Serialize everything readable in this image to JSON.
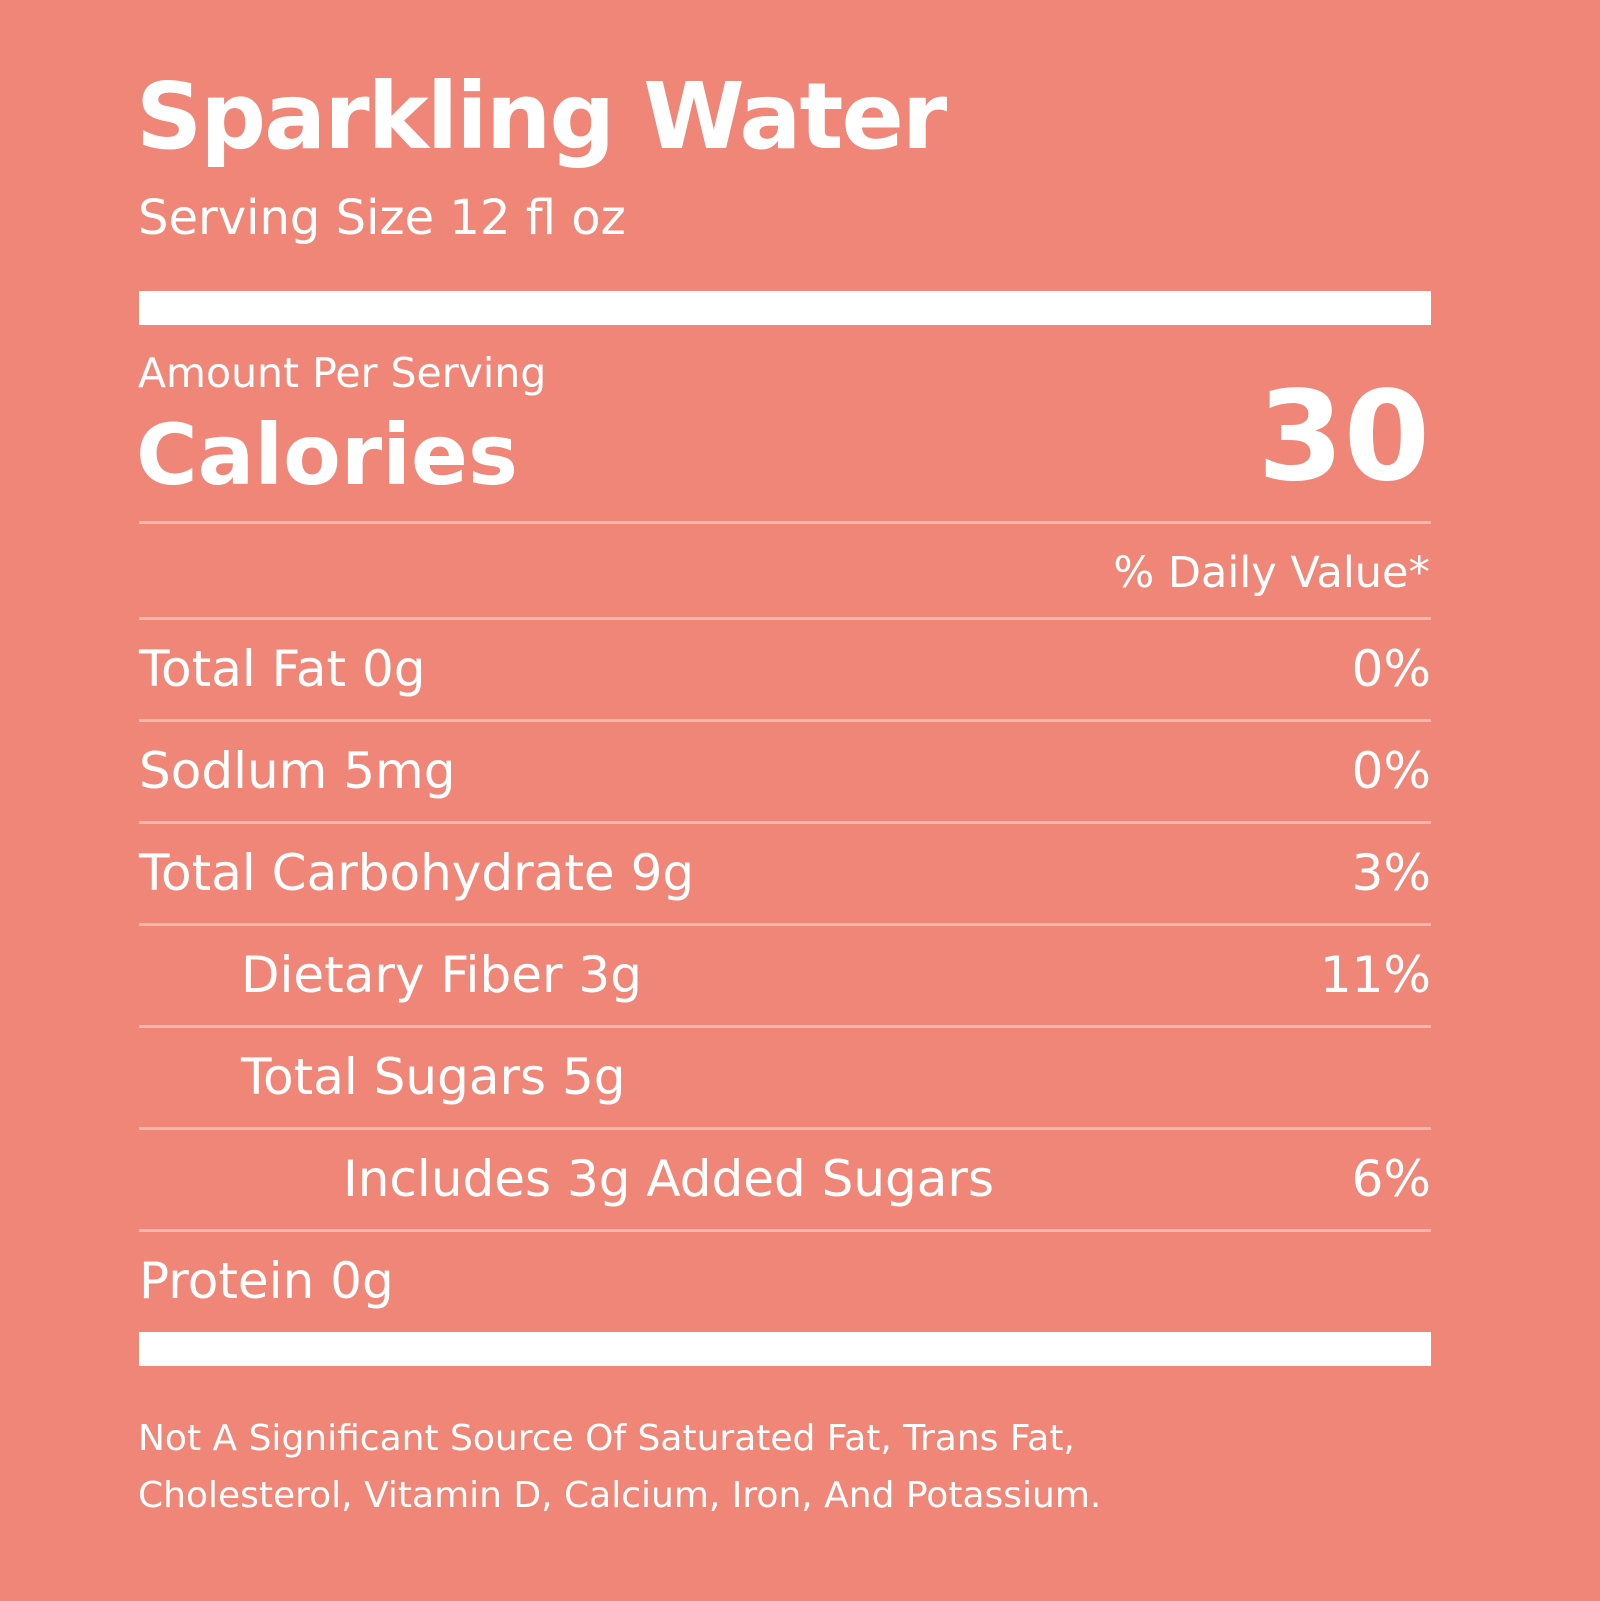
{
  "title": "Sparkling Water",
  "serving_size": "Serving Size 12 fl oz",
  "amount_per_serving": "Amount Per Serving",
  "calories_label": "Calories",
  "calories_value": "30",
  "daily_value_header": "% Daily Value*",
  "nutrients": [
    {
      "label": "Total Fat 0g",
      "dv": "0%",
      "indent": 0
    },
    {
      "label": "Sodlum 5mg",
      "dv": "0%",
      "indent": 0
    },
    {
      "label": "Total Carbohydrate 9g",
      "dv": "3%",
      "indent": 0
    },
    {
      "label": "Dietary Fiber 3g",
      "dv": "11%",
      "indent": 1
    },
    {
      "label": "Total Sugars 5g",
      "dv": "",
      "indent": 1
    },
    {
      "label": "Includes 3g Added Sugars",
      "dv": "6%",
      "indent": 2
    },
    {
      "label": "Protein 0g",
      "dv": "",
      "indent": 0
    }
  ],
  "footnote_lines": [
    "Not A Significant Source Of Saturated Fat, Trans Fat,",
    "Cholesterol, Vitamin D, Calcium, Iron, And Potassium."
  ],
  "colors": {
    "background": "#EF8677",
    "text": "#FFFFFF",
    "divider": "#F6B7AD"
  }
}
